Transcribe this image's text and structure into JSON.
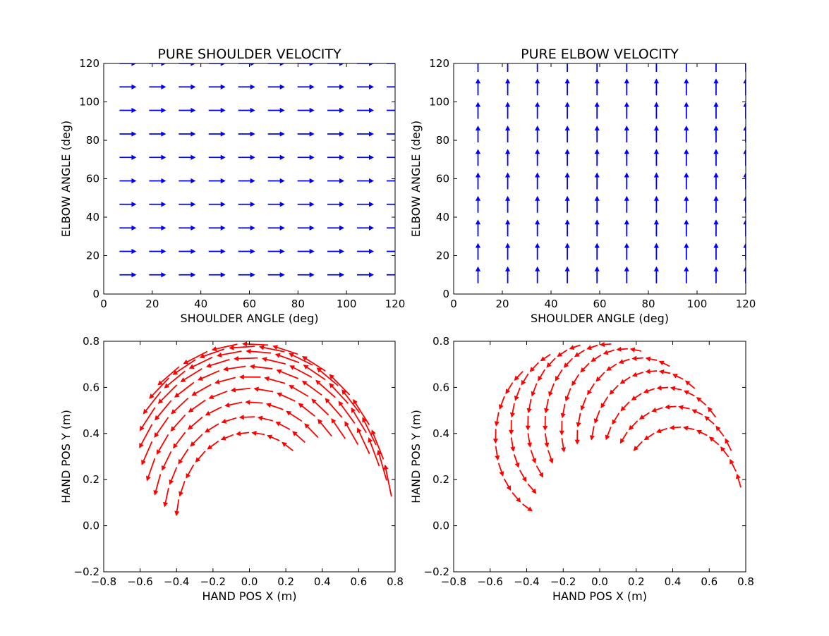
{
  "figure": {
    "background": "#ffffff",
    "arrow_colors": {
      "joint_space": "#0000ff",
      "hand_space": "#ff0000"
    }
  },
  "chart_data": [
    {
      "type": "quiver",
      "title": "PURE SHOULDER VELOCITY",
      "xlabel": "SHOULDER ANGLE (deg)",
      "ylabel": "ELBOW ANGLE (deg)",
      "xlim": [
        0,
        120
      ],
      "ylim": [
        0,
        120
      ],
      "xticks": [
        "0",
        "20",
        "40",
        "60",
        "80",
        "100",
        "120"
      ],
      "yticks": [
        "0",
        "20",
        "40",
        "60",
        "80",
        "100",
        "120"
      ],
      "grid": false,
      "color": "#0000ff",
      "field": {
        "kind": "joint",
        "x": [
          10,
          22.2,
          34.4,
          46.7,
          58.9,
          71.1,
          83.3,
          95.6,
          107.8,
          120
        ],
        "y": [
          10,
          22.2,
          34.4,
          46.7,
          58.9,
          71.1,
          83.3,
          95.6,
          107.8,
          120
        ],
        "direction": [
          1,
          0
        ]
      }
    },
    {
      "type": "quiver",
      "title": "PURE ELBOW VELOCITY",
      "xlabel": "SHOULDER ANGLE (deg)",
      "ylabel": "ELBOW ANGLE (deg)",
      "xlim": [
        0,
        120
      ],
      "ylim": [
        0,
        120
      ],
      "xticks": [
        "0",
        "20",
        "40",
        "60",
        "80",
        "100",
        "120"
      ],
      "yticks": [
        "0",
        "20",
        "40",
        "60",
        "80",
        "100",
        "120"
      ],
      "grid": false,
      "color": "#0000ff",
      "field": {
        "kind": "joint",
        "x": [
          10,
          22.2,
          34.4,
          46.7,
          58.9,
          71.1,
          83.3,
          95.6,
          107.8,
          120
        ],
        "y": [
          10,
          22.2,
          34.4,
          46.7,
          58.9,
          71.1,
          83.3,
          95.6,
          107.8,
          120
        ],
        "direction": [
          0,
          1
        ]
      }
    },
    {
      "type": "quiver",
      "title": "",
      "xlabel": "HAND POS X (m)",
      "ylabel": "HAND POS Y (m)",
      "xlim": [
        -0.8,
        0.8
      ],
      "ylim": [
        -0.2,
        0.8
      ],
      "xticks": [
        "−0.8",
        "−0.6",
        "−0.4",
        "−0.2",
        "0.0",
        "0.2",
        "0.4",
        "0.6",
        "0.8"
      ],
      "yticks": [
        "−0.2",
        "0.0",
        "0.2",
        "0.4",
        "0.6",
        "0.8"
      ],
      "grid": false,
      "color": "#ff0000",
      "field": {
        "kind": "hand",
        "shoulder_deg": [
          10,
          22.2,
          34.4,
          46.7,
          58.9,
          71.1,
          83.3,
          95.6,
          107.8,
          120
        ],
        "elbow_deg": [
          10,
          22.2,
          34.4,
          46.7,
          58.9,
          71.1,
          83.3,
          95.6,
          107.8,
          120
        ],
        "upper_arm_m": 0.44,
        "forearm_m": 0.35,
        "joint_velocity": [
          1,
          0
        ]
      }
    },
    {
      "type": "quiver",
      "title": "",
      "xlabel": "HAND POS X (m)",
      "ylabel": "HAND POS Y (m)",
      "xlim": [
        -0.8,
        0.8
      ],
      "ylim": [
        -0.2,
        0.8
      ],
      "xticks": [
        "−0.8",
        "−0.6",
        "−0.4",
        "−0.2",
        "0.0",
        "0.2",
        "0.4",
        "0.6",
        "0.8"
      ],
      "yticks": [
        "−0.2",
        "0.0",
        "0.2",
        "0.4",
        "0.6",
        "0.8"
      ],
      "grid": false,
      "color": "#ff0000",
      "field": {
        "kind": "hand",
        "shoulder_deg": [
          10,
          22.2,
          34.4,
          46.7,
          58.9,
          71.1,
          83.3,
          95.6,
          107.8,
          120
        ],
        "elbow_deg": [
          10,
          22.2,
          34.4,
          46.7,
          58.9,
          71.1,
          83.3,
          95.6,
          107.8,
          120
        ],
        "upper_arm_m": 0.44,
        "forearm_m": 0.35,
        "joint_velocity": [
          0,
          1
        ]
      }
    }
  ]
}
